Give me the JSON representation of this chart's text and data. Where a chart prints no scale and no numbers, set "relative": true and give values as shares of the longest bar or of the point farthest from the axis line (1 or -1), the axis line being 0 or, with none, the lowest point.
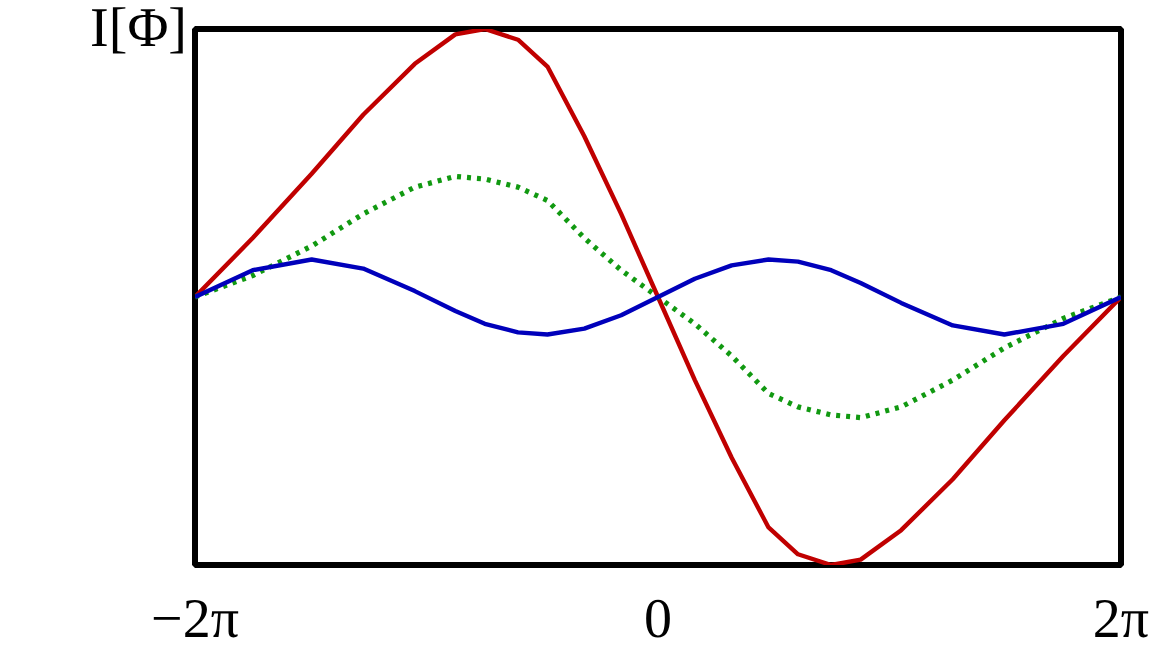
{
  "chart_data": {
    "type": "line",
    "ylabel": "I[Φ]",
    "relative": true,
    "xlim": [
      -6.283,
      6.283
    ],
    "xticks": [
      {
        "value": -6.283,
        "label": "−2π"
      },
      0,
      {
        "value": 6.283,
        "label": "2π"
      }
    ],
    "x": [
      -6.283,
      -5.5,
      -4.7,
      -4,
      -3.3,
      -2.75,
      -2.35,
      -1.9,
      -1.5,
      -1,
      -0.5,
      0,
      0.5,
      1,
      1.5,
      1.9,
      2.35,
      2.75,
      3.3,
      4,
      4.7,
      5.5,
      6.283
    ],
    "grid": false,
    "marker": "none",
    "series": [
      {
        "color": "#c00000",
        "line_style": "solid",
        "values": [
          0.5,
          0.61,
          0.73,
          0.84,
          0.935,
          0.99,
          1,
          0.98,
          0.93,
          0.8,
          0.655,
          0.5,
          0.345,
          0.2,
          0.07,
          0.02,
          0,
          0.01,
          0.065,
          0.16,
          0.27,
          0.39,
          0.5
        ]
      },
      {
        "color": "#119911",
        "line_style": "dotted",
        "values": [
          0.5,
          0.54,
          0.595,
          0.655,
          0.705,
          0.725,
          0.72,
          0.705,
          0.68,
          0.61,
          0.55,
          0.5,
          0.45,
          0.39,
          0.32,
          0.295,
          0.28,
          0.275,
          0.295,
          0.345,
          0.405,
          0.46,
          0.5
        ]
      },
      {
        "color": "#0000bb",
        "line_style": "solid",
        "values": [
          0.5,
          0.55,
          0.57,
          0.553,
          0.511,
          0.474,
          0.45,
          0.434,
          0.43,
          0.441,
          0.466,
          0.5,
          0.534,
          0.559,
          0.57,
          0.566,
          0.55,
          0.526,
          0.489,
          0.447,
          0.43,
          0.45,
          0.5
        ]
      }
    ]
  }
}
